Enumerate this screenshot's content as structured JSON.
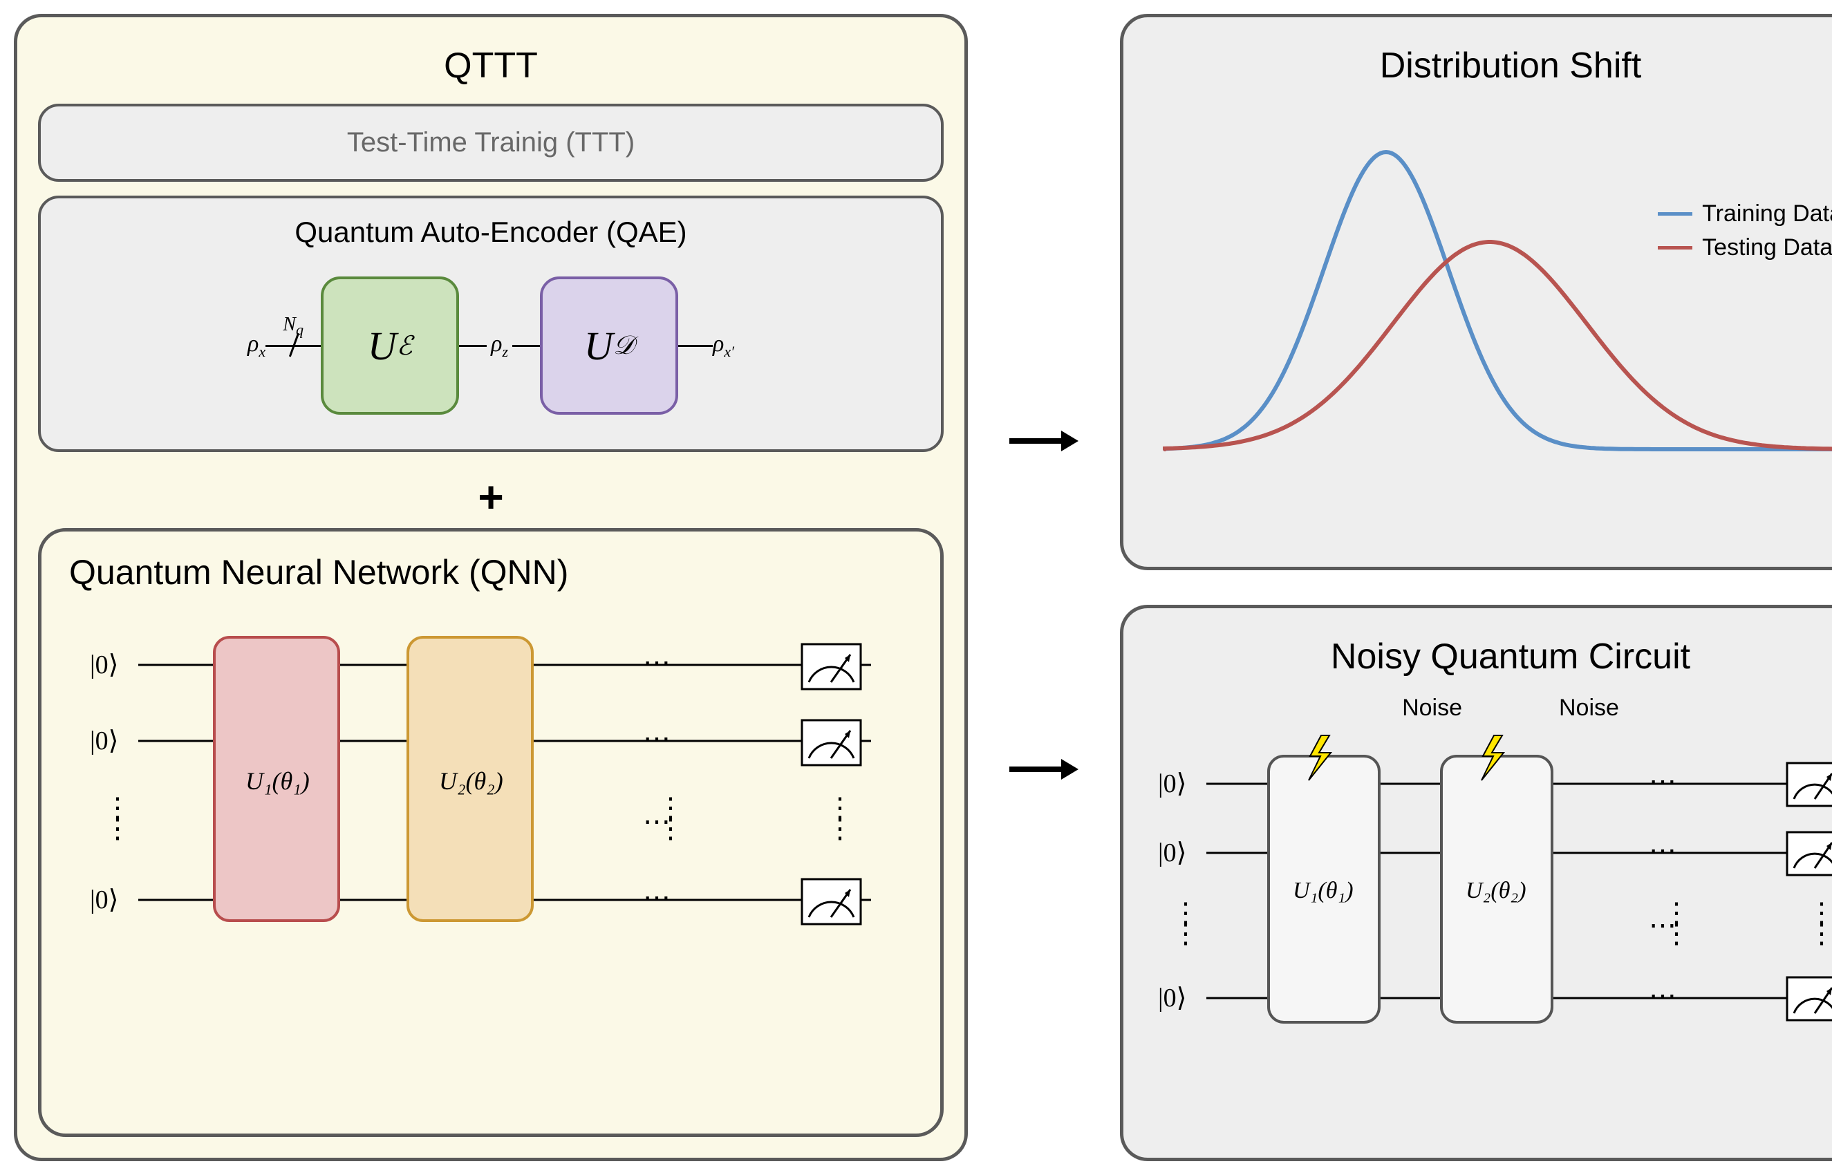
{
  "left_panel": {
    "title": "QTTT",
    "ttt_label": "Test-Time Trainig (TTT)",
    "qae": {
      "title": "Quantum Auto-Encoder (QAE)",
      "input_label": "ρ",
      "input_sub": "x",
      "nq_label": "N",
      "nq_sub": "q",
      "encoder_label": "U",
      "encoder_sub": "ℰ",
      "latent_label": "ρ",
      "latent_sub": "z",
      "decoder_label": "U",
      "decoder_sub": "𝒟",
      "output_label": "ρ",
      "output_sub": "x′",
      "encoder_bg": "#cde3bd",
      "encoder_border": "#5a8a3d",
      "decoder_bg": "#dbd3eb",
      "decoder_border": "#7a5fa6"
    },
    "plus": "+",
    "qnn": {
      "title": "Quantum Neural Network (QNN)",
      "ket_label": "|0⟩",
      "gate1_label": "U₁(θ₁)",
      "gate2_label": "U₂(θ₂)",
      "gate1_bg": "#edc6c6",
      "gate1_border": "#b84d4d",
      "gate2_bg": "#f4dfb8",
      "gate2_border": "#cc9833",
      "ellipsis": "⋯",
      "vdots": "⋮"
    }
  },
  "right_top": {
    "title": "Distribution Shift",
    "legend": {
      "training": {
        "label": "Training Data",
        "color": "#5a8fc7"
      },
      "testing": {
        "label": "Testing Data",
        "color": "#b85450"
      }
    },
    "chart": {
      "type": "line",
      "background": "#eeeeee",
      "line_width": 6,
      "training_color": "#5a8fc7",
      "testing_color": "#b85450",
      "xlim": [
        0,
        1000
      ],
      "ylim": [
        0,
        500
      ],
      "training_curve": {
        "mu": 350,
        "sigma": 90,
        "peak": 430
      },
      "testing_curve": {
        "mu": 500,
        "sigma": 140,
        "peak": 300
      }
    }
  },
  "right_bottom": {
    "title": "Noisy Quantum Circuit",
    "noise_label": "Noise",
    "ket_label": "|0⟩",
    "gate1_label": "U₁(θ₁)",
    "gate2_label": "U₂(θ₂)",
    "gate_bg": "#f6f6f6",
    "gate_border": "#555555",
    "ellipsis": "⋯",
    "vdots": "⋮",
    "bolt_color": "#ffe600"
  },
  "colors": {
    "panel_border": "#5a5a5a",
    "cream": "#fbf9e7",
    "grey": "#eeeeee",
    "wire": "#000000"
  }
}
